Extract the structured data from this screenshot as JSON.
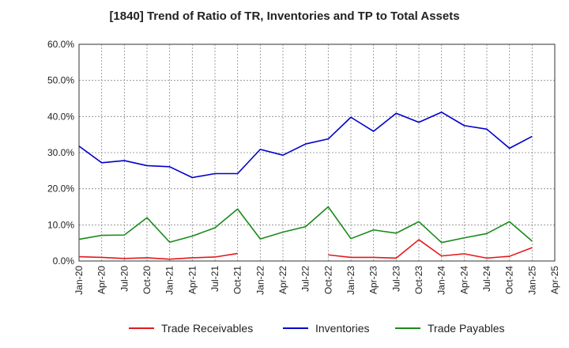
{
  "chart_data": {
    "type": "line",
    "title": "[1840]  Trend of Ratio of TR, Inventories and TP to Total Assets",
    "xlabel": "",
    "ylabel": "",
    "ylim": [
      0,
      60
    ],
    "y_ticks": [
      "0.0%",
      "10.0%",
      "20.0%",
      "30.0%",
      "40.0%",
      "50.0%",
      "60.0%"
    ],
    "x_ticks": [
      "Jan-20",
      "Apr-20",
      "Jul-20",
      "Oct-20",
      "Jan-21",
      "Apr-21",
      "Jul-21",
      "Oct-21",
      "Jan-22",
      "Apr-22",
      "Jul-22",
      "Oct-22",
      "Jan-23",
      "Apr-23",
      "Jul-23",
      "Oct-23",
      "Jan-24",
      "Apr-24",
      "Jul-24",
      "Oct-24",
      "Jan-25",
      "Apr-25"
    ],
    "x": [
      "Jan-20",
      "Apr-20",
      "Jul-20",
      "Oct-20",
      "Jan-21",
      "Apr-21",
      "Jul-21",
      "Oct-21",
      "Jan-22",
      "Apr-22",
      "Jul-22",
      "Oct-22",
      "Jan-23",
      "Apr-23",
      "Jul-23",
      "Oct-23",
      "Jan-24",
      "Apr-24",
      "Jul-24",
      "Oct-24",
      "Jan-25"
    ],
    "grid": true,
    "legend_position": "bottom",
    "series": [
      {
        "name": "Trade Receivables",
        "color": "#e31a1c",
        "values": [
          1.2,
          1.0,
          0.7,
          0.9,
          0.5,
          0.9,
          1.1,
          2.1,
          null,
          null,
          null,
          1.7,
          1.0,
          1.0,
          0.8,
          5.9,
          1.4,
          2.0,
          0.8,
          1.3,
          3.7
        ]
      },
      {
        "name": "Inventories",
        "color": "#0000cc",
        "values": [
          31.8,
          27.2,
          27.8,
          26.4,
          26.1,
          23.1,
          24.2,
          24.2,
          30.9,
          29.3,
          32.4,
          33.8,
          39.8,
          35.9,
          40.9,
          38.4,
          41.2,
          37.5,
          36.5,
          31.2,
          34.5
        ]
      },
      {
        "name": "Trade Payables",
        "color": "#1a8a1a",
        "values": [
          6.0,
          7.1,
          7.2,
          12.0,
          5.2,
          6.9,
          9.2,
          14.4,
          6.1,
          8.0,
          9.5,
          15.0,
          6.2,
          8.6,
          7.7,
          10.9,
          5.1,
          6.4,
          7.6,
          10.9,
          5.5
        ]
      }
    ]
  }
}
